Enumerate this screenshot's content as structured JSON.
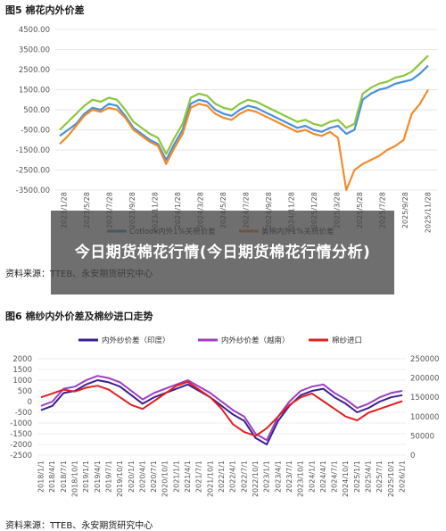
{
  "fig5": {
    "title": "图5 棉花内外价差",
    "source": "资料来源：TTEB、永安期货研究中心"
  },
  "fig6": {
    "title": "图6 棉纱内外价差及棉纱进口走势",
    "source": "资料来源：TTEB、永安期货研究中心"
  },
  "overlay": {
    "text": "今日期货棉花行情(今日期货棉花行情分析)"
  },
  "chart_data": [
    {
      "type": "line",
      "title": "",
      "ylim": [
        -3500,
        4500
      ],
      "y_ticks": [
        "4500.00",
        "3500.00",
        "2500.00",
        "1500.00",
        "500.00",
        "-500.00",
        "-1500.00",
        "-2500.00",
        "-3500.00"
      ],
      "x_ticks": [
        "2023/1/28",
        "2023/5/28",
        "2023/7/28",
        "2023/9/28",
        "2023/11/28",
        "2024/1/28",
        "2024/3/28",
        "2024/5/28",
        "2024/7/28",
        "2024/9/28",
        "2024/11/28",
        "2025/1/28",
        "2025/3/28",
        "2025/5/28",
        "2025/7/28",
        "2025/9/28",
        "2025/11/28"
      ],
      "legend_position": "bottom",
      "series": [
        {
          "name": "Cotlook内外1%关税价差",
          "color": "#4a90d9",
          "values": [
            -800,
            -500,
            -200,
            300,
            600,
            500,
            800,
            700,
            200,
            -400,
            -700,
            -1000,
            -1200,
            -2000,
            -1200,
            -500,
            800,
            1000,
            900,
            500,
            300,
            200,
            500,
            700,
            600,
            400,
            200,
            0,
            -200,
            -400,
            -300,
            -500,
            -600,
            -400,
            -300,
            -700,
            -500,
            1000,
            1300,
            1500,
            1600,
            1800,
            1900,
            2000,
            2300,
            2700
          ]
        },
        {
          "name": "",
          "color": "#8cc63f",
          "values": [
            -500,
            -100,
            300,
            700,
            1000,
            900,
            1100,
            1000,
            500,
            -100,
            -400,
            -700,
            -900,
            -1700,
            -900,
            -200,
            1100,
            1300,
            1200,
            800,
            600,
            500,
            800,
            1000,
            900,
            700,
            500,
            300,
            100,
            -100,
            0,
            -200,
            -300,
            -100,
            0,
            -400,
            -200,
            1300,
            1600,
            1800,
            1900,
            2100,
            2200,
            2400,
            2800,
            3200
          ]
        },
        {
          "name": "美棉内外1%关税价差",
          "color": "#f08c2c",
          "values": [
            -1200,
            -800,
            -300,
            200,
            500,
            400,
            600,
            500,
            100,
            -500,
            -800,
            -1100,
            -1300,
            -2200,
            -1400,
            -700,
            600,
            800,
            700,
            300,
            100,
            0,
            300,
            500,
            400,
            200,
            0,
            -200,
            -400,
            -600,
            -500,
            -700,
            -800,
            -600,
            -900,
            -3500,
            -2500,
            -2200,
            -2000,
            -1800,
            -1500,
            -1300,
            -1000,
            300,
            800,
            1500
          ]
        }
      ]
    },
    {
      "type": "line",
      "title": "",
      "ylim_left": [
        -2500,
        2000
      ],
      "ylim_right": [
        0,
        250000
      ],
      "y_ticks_left": [
        "2000",
        "1500",
        "1000",
        "500",
        "0",
        "-500",
        "-1000",
        "-1500",
        "-2000",
        "-2500"
      ],
      "y_ticks_right": [
        "250000",
        "200000",
        "150000",
        "100000",
        "50000",
        "0"
      ],
      "x_ticks": [
        "2018/1/1",
        "2018/4/1",
        "2018/7/1",
        "2018/10/1",
        "2019/1/1",
        "2019/4/1",
        "2019/7/1",
        "2019/10/1",
        "2020/1/1",
        "2020/4/1",
        "2020/7/1",
        "2020/10/1",
        "2021/1/1",
        "2021/4/1",
        "2021/7/1",
        "2021/10/1",
        "2022/1/1",
        "2022/4/1",
        "2022/7/1",
        "2022/10/1",
        "2023/1/1",
        "2023/4/1",
        "2023/7/1",
        "2023/10/1",
        "2024/1/1",
        "2024/4/1",
        "2024/7/1",
        "2024/10/1",
        "2025/1/1",
        "2025/4/1",
        "2025/7/1",
        "2025/10/1",
        "2026/1/1"
      ],
      "legend_position": "top",
      "series": [
        {
          "name": "内外纱价差（印度）",
          "color": "#3b1f8f",
          "axis": "left",
          "values": [
            -400,
            -200,
            400,
            500,
            800,
            1000,
            900,
            700,
            300,
            -100,
            200,
            400,
            600,
            800,
            500,
            200,
            -200,
            -600,
            -900,
            -1700,
            -2000,
            -900,
            -200,
            300,
            500,
            600,
            200,
            -100,
            -500,
            -300,
            0,
            200,
            300
          ]
        },
        {
          "name": "内外纱价差（越南）",
          "color": "#9b3fc2",
          "axis": "left",
          "values": [
            -200,
            0,
            600,
            700,
            1000,
            1200,
            1100,
            900,
            500,
            100,
            400,
            600,
            800,
            1000,
            700,
            400,
            0,
            -400,
            -700,
            -1500,
            -1800,
            -700,
            0,
            500,
            700,
            800,
            400,
            100,
            -300,
            -100,
            200,
            400,
            500
          ]
        },
        {
          "name": "棉纱进口",
          "color": "#e02020",
          "axis": "right",
          "values": [
            150000,
            160000,
            170000,
            165000,
            175000,
            180000,
            170000,
            150000,
            130000,
            120000,
            140000,
            160000,
            180000,
            190000,
            170000,
            150000,
            120000,
            80000,
            60000,
            50000,
            70000,
            100000,
            130000,
            150000,
            160000,
            140000,
            120000,
            100000,
            90000,
            110000,
            120000,
            130000,
            140000
          ]
        }
      ]
    }
  ]
}
